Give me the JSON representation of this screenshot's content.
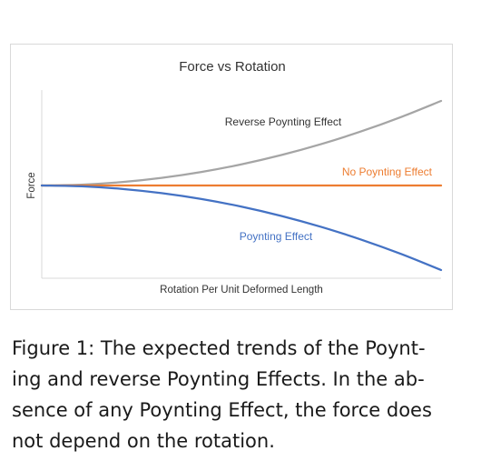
{
  "chart_data": {
    "type": "line",
    "title": "Force vs Rotation",
    "xlabel": "Rotation Per Unit Deformed Length",
    "ylabel": "Force",
    "xlim": [
      0,
      1
    ],
    "ylim": [
      -1,
      1
    ],
    "grid": false,
    "legend": "inline",
    "series": [
      {
        "name": "Reverse Poynting Effect",
        "color": "#a5a5a5",
        "x": [
          0,
          0.1,
          0.2,
          0.3,
          0.4,
          0.5,
          0.6,
          0.7,
          0.8,
          0.9,
          1.0
        ],
        "y": [
          0,
          0.01,
          0.04,
          0.09,
          0.16,
          0.25,
          0.36,
          0.49,
          0.64,
          0.81,
          1.0
        ]
      },
      {
        "name": "No Poynting Effect",
        "color": "#ed7d31",
        "x": [
          0,
          0.1,
          0.2,
          0.3,
          0.4,
          0.5,
          0.6,
          0.7,
          0.8,
          0.9,
          1.0
        ],
        "y": [
          0,
          0,
          0,
          0,
          0,
          0,
          0,
          0,
          0,
          0,
          0
        ]
      },
      {
        "name": "Poynting Effect",
        "color": "#4472c4",
        "x": [
          0,
          0.1,
          0.2,
          0.3,
          0.4,
          0.5,
          0.6,
          0.7,
          0.8,
          0.9,
          1.0
        ],
        "y": [
          0,
          -0.01,
          -0.04,
          -0.09,
          -0.16,
          -0.25,
          -0.36,
          -0.49,
          -0.64,
          -0.81,
          -1.0
        ]
      }
    ]
  },
  "caption": {
    "lines": [
      "Figure 1: The expected trends of the Poynt-",
      "ing and reverse Poynting Effects.  In the ab-",
      "sence of any Poynting Effect, the force does",
      "not depend on the rotation."
    ]
  }
}
